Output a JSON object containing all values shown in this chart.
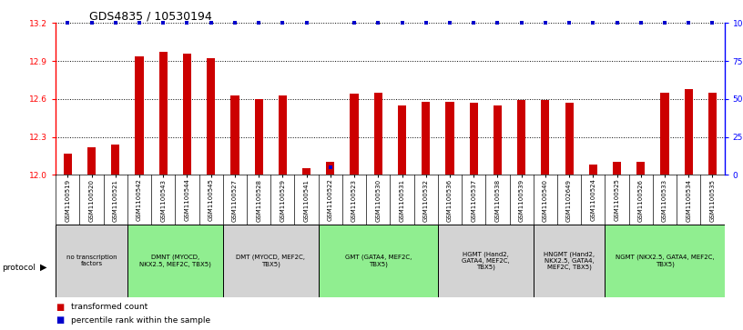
{
  "title": "GDS4835 / 10530194",
  "samples": [
    "GSM1100519",
    "GSM1100520",
    "GSM1100521",
    "GSM1100542",
    "GSM1100543",
    "GSM1100544",
    "GSM1100545",
    "GSM1100527",
    "GSM1100528",
    "GSM1100529",
    "GSM1100541",
    "GSM1100522",
    "GSM1100523",
    "GSM1100530",
    "GSM1100531",
    "GSM1100532",
    "GSM1100536",
    "GSM1100537",
    "GSM1100538",
    "GSM1100539",
    "GSM1100540",
    "GSM1102649",
    "GSM1100524",
    "GSM1100525",
    "GSM1100526",
    "GSM1100533",
    "GSM1100534",
    "GSM1100535"
  ],
  "red_values": [
    12.17,
    12.22,
    12.24,
    12.94,
    12.97,
    12.96,
    12.92,
    12.63,
    12.6,
    12.63,
    12.05,
    12.1,
    12.64,
    12.65,
    12.55,
    12.58,
    12.58,
    12.57,
    12.55,
    12.59,
    12.59,
    12.57,
    12.08,
    12.1,
    12.1,
    12.65,
    12.68,
    12.65
  ],
  "blue_values": [
    100,
    100,
    100,
    100,
    100,
    100,
    100,
    100,
    100,
    100,
    100,
    5,
    100,
    100,
    100,
    100,
    100,
    100,
    100,
    100,
    100,
    100,
    100,
    100,
    100,
    100,
    100,
    100
  ],
  "ylim_left": [
    12.0,
    13.2
  ],
  "ylim_right": [
    0,
    100
  ],
  "yticks_left": [
    12.0,
    12.3,
    12.6,
    12.9,
    13.2
  ],
  "yticks_right": [
    0,
    25,
    50,
    75,
    100
  ],
  "ytick_labels_right": [
    "0",
    "25",
    "50",
    "75",
    "100%"
  ],
  "groups": [
    {
      "label": "no transcription\nfactors",
      "start": 0,
      "end": 3,
      "color": "#d3d3d3"
    },
    {
      "label": "DMNT (MYOCD,\nNKX2.5, MEF2C, TBX5)",
      "start": 3,
      "end": 7,
      "color": "#90ee90"
    },
    {
      "label": "DMT (MYOCD, MEF2C,\nTBX5)",
      "start": 7,
      "end": 11,
      "color": "#d3d3d3"
    },
    {
      "label": "GMT (GATA4, MEF2C,\nTBX5)",
      "start": 11,
      "end": 16,
      "color": "#90ee90"
    },
    {
      "label": "HGMT (Hand2,\nGATA4, MEF2C,\nTBX5)",
      "start": 16,
      "end": 20,
      "color": "#d3d3d3"
    },
    {
      "label": "HNGMT (Hand2,\nNKX2.5, GATA4,\nMEF2C, TBX5)",
      "start": 20,
      "end": 23,
      "color": "#d3d3d3"
    },
    {
      "label": "NGMT (NKX2.5, GATA4, MEF2C,\nTBX5)",
      "start": 23,
      "end": 28,
      "color": "#90ee90"
    }
  ],
  "bar_color": "#cc0000",
  "dot_color": "#0000cc",
  "background_color": "#ffffff",
  "title_fontsize": 9,
  "tick_fontsize": 6.5,
  "sample_fontsize": 5.0,
  "group_fontsize": 5.0
}
